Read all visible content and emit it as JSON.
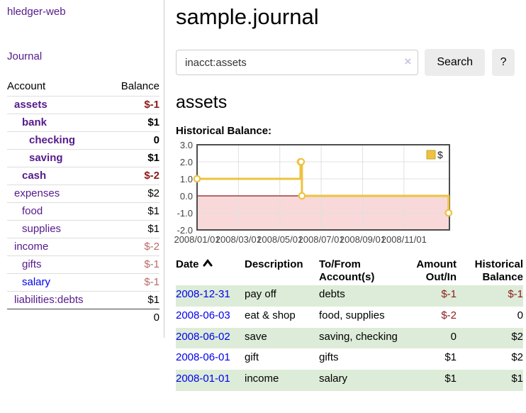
{
  "app": {
    "brand": "hledger-web",
    "nav": {
      "journal": "Journal"
    }
  },
  "colors": {
    "link_purple": "#551a8b",
    "link_blue": "#0000ee",
    "negative_strong": "#8d1a1a",
    "negative_soft": "#b96a6a",
    "row_stripe_green": "#ddecd8",
    "button_bg": "#ececec"
  },
  "sidebar": {
    "columns": {
      "account": "Account",
      "balance": "Balance"
    },
    "accounts": [
      {
        "name": "assets",
        "balance": "$-1",
        "depth": 1,
        "bold": true,
        "neg": "strong"
      },
      {
        "name": "bank",
        "balance": "$1",
        "depth": 2,
        "bold": true
      },
      {
        "name": "checking",
        "balance": "0",
        "depth": 3,
        "bold": true
      },
      {
        "name": "saving",
        "balance": "$1",
        "depth": 3,
        "bold": true
      },
      {
        "name": "cash",
        "balance": "$-2",
        "depth": 2,
        "bold": true,
        "neg": "strong"
      },
      {
        "name": "expenses",
        "balance": "$2",
        "depth": 1
      },
      {
        "name": "food",
        "balance": "$1",
        "depth": 2
      },
      {
        "name": "supplies",
        "balance": "$1",
        "depth": 2
      },
      {
        "name": "income",
        "balance": "$-2",
        "depth": 1,
        "neg": "soft"
      },
      {
        "name": "gifts",
        "balance": "$-1",
        "depth": 2,
        "neg": "soft"
      },
      {
        "name": "salary",
        "balance": "$-1",
        "depth": 2,
        "neg": "soft",
        "blue": true
      },
      {
        "name": "liabilities:debts",
        "balance": "$1",
        "depth": 1
      }
    ],
    "total": "0"
  },
  "header": {
    "title": "sample.journal"
  },
  "search": {
    "value": "inacct:assets",
    "clear": "×",
    "button": "Search",
    "help": "?"
  },
  "account_page": {
    "heading": "assets",
    "chart_label": "Historical Balance:"
  },
  "chart_data": {
    "type": "line",
    "title": "Historical Balance:",
    "step": true,
    "x_unit": "months since 2008-01-01",
    "xlim": [
      0,
      12.2
    ],
    "ylim": [
      -2,
      3
    ],
    "yticks": [
      3.0,
      2.0,
      1.0,
      0.0,
      -1.0,
      -2.0
    ],
    "xticks": [
      {
        "m": 0,
        "label": "2008/01/01"
      },
      {
        "m": 2,
        "label": "2008/03/01"
      },
      {
        "m": 4,
        "label": "2008/05/01"
      },
      {
        "m": 6,
        "label": "2008/07/01"
      },
      {
        "m": 8,
        "label": "2008/09/01"
      },
      {
        "m": 10,
        "label": "2008/11/01"
      }
    ],
    "series": [
      {
        "name": "$",
        "color": "#edc240",
        "points": [
          {
            "date": "2008-01-01",
            "m": 0,
            "y": 1
          },
          {
            "date": "2008-06-01",
            "m": 5.0,
            "y": 2
          },
          {
            "date": "2008-06-02",
            "m": 5.03,
            "y": 2
          },
          {
            "date": "2008-06-03",
            "m": 5.07,
            "y": 0
          },
          {
            "date": "2008-12-31",
            "m": 12.16,
            "y": -1
          }
        ]
      }
    ],
    "legend": {
      "position": "top-right",
      "entries": [
        "$"
      ]
    },
    "style": {
      "negative_region_fill": "#f8d8d8",
      "zero_line_color": "#8b1a1a",
      "grid_color": "#e0e0e0",
      "plot_border_color": "#4d4d4d",
      "axis_text_color": "#444444",
      "legend_swatch_border": "#c9a42e",
      "marker_fill": "#ffffff"
    }
  },
  "register": {
    "columns": [
      {
        "l1": "Date",
        "sorted": "asc"
      },
      {
        "l1": "Description"
      },
      {
        "l1": "To/From",
        "l2": "Account(s)"
      },
      {
        "l1": "Amount",
        "l2": "Out/In",
        "align": "right"
      },
      {
        "l1": "Historical",
        "l2": "Balance",
        "align": "right"
      }
    ],
    "rows": [
      {
        "date": "2008-12-31",
        "description": "pay off",
        "accounts": "debts",
        "amount": "$-1",
        "balance": "$-1",
        "amount_neg": true,
        "balance_neg": true,
        "shade": true
      },
      {
        "date": "2008-06-03",
        "description": "eat & shop",
        "accounts": "food, supplies",
        "amount": "$-2",
        "balance": "0",
        "amount_neg": true
      },
      {
        "date": "2008-06-02",
        "description": "save",
        "accounts": "saving, checking",
        "amount": "0",
        "balance": "$2",
        "shade": true
      },
      {
        "date": "2008-06-01",
        "description": "gift",
        "accounts": "gifts",
        "amount": "$1",
        "balance": "$2"
      },
      {
        "date": "2008-01-01",
        "description": "income",
        "accounts": "salary",
        "amount": "$1",
        "balance": "$1",
        "shade": true
      }
    ]
  }
}
